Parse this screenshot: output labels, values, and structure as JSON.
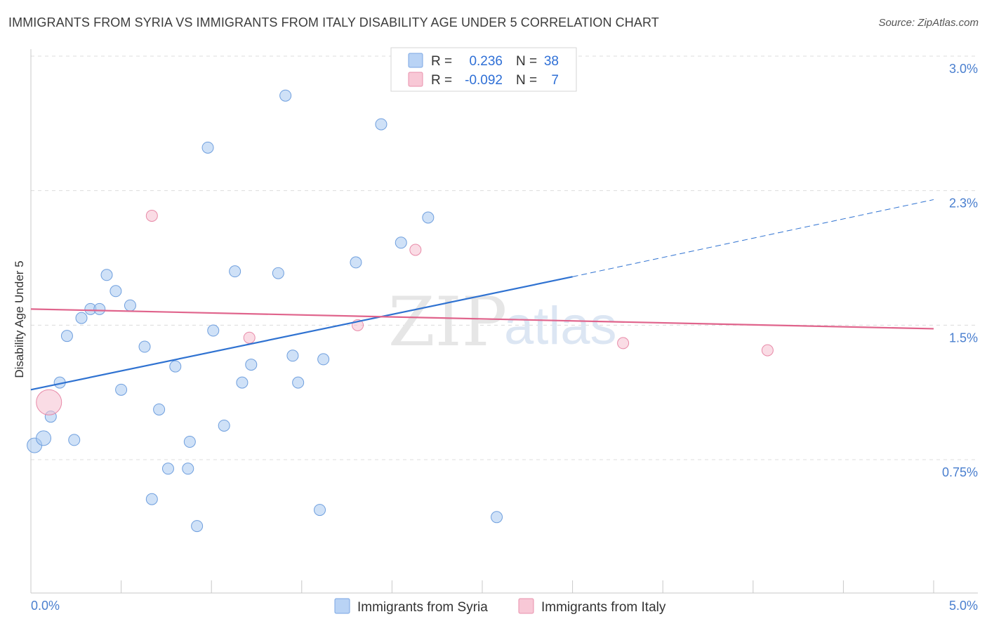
{
  "header": {
    "title": "IMMIGRANTS FROM SYRIA VS IMMIGRANTS FROM ITALY DISABILITY AGE UNDER 5 CORRELATION CHART",
    "source": "Source: ZipAtlas.com"
  },
  "watermark": {
    "zip": "ZIP",
    "atlas": "atlas"
  },
  "chart_data": {
    "type": "scatter",
    "title": "IMMIGRANTS FROM SYRIA VS IMMIGRANTS FROM ITALY DISABILITY AGE UNDER 5 CORRELATION CHART",
    "xlabel": "",
    "ylabel": "Disability Age Under 5",
    "xlim": [
      0.0,
      5.0
    ],
    "ylim": [
      0.0,
      3.0
    ],
    "x_tick_labels": [
      "0.0%",
      "5.0%"
    ],
    "y_ticks": [
      {
        "value": 3.0,
        "label": "3.0%"
      },
      {
        "value": 2.25,
        "label": "2.3%"
      },
      {
        "value": 1.5,
        "label": "1.5%"
      },
      {
        "value": 0.75,
        "label": "0.75%"
      }
    ],
    "legend_stats": [
      {
        "r_label": "R =",
        "r_value": "0.236",
        "n_label": "N =",
        "n_value": "38"
      },
      {
        "r_label": "R =",
        "r_value": "-0.092",
        "n_label": "N =",
        "n_value": "7"
      }
    ],
    "series": [
      {
        "name": "Immigrants from Syria",
        "color": "#a8c8f0",
        "stroke": "#6f9fde",
        "trend_color": "#2f72d1",
        "trend": {
          "x0": 0.0,
          "y0": 1.14,
          "x1": 3.0,
          "y1": 1.77,
          "dash_to": 5.0,
          "dash_y": 2.2
        },
        "points": [
          {
            "x": 0.02,
            "y": 0.83,
            "big": true
          },
          {
            "x": 0.07,
            "y": 0.87,
            "big": true
          },
          {
            "x": 0.11,
            "y": 0.99
          },
          {
            "x": 0.16,
            "y": 1.18
          },
          {
            "x": 0.2,
            "y": 1.44
          },
          {
            "x": 0.24,
            "y": 0.86
          },
          {
            "x": 0.28,
            "y": 1.54
          },
          {
            "x": 0.33,
            "y": 1.59
          },
          {
            "x": 0.38,
            "y": 1.59
          },
          {
            "x": 0.42,
            "y": 1.78
          },
          {
            "x": 0.47,
            "y": 1.69
          },
          {
            "x": 0.5,
            "y": 1.14
          },
          {
            "x": 0.55,
            "y": 1.61
          },
          {
            "x": 0.63,
            "y": 1.38
          },
          {
            "x": 0.67,
            "y": 0.53
          },
          {
            "x": 0.71,
            "y": 1.03
          },
          {
            "x": 0.76,
            "y": 0.7
          },
          {
            "x": 0.8,
            "y": 1.27
          },
          {
            "x": 0.87,
            "y": 0.7
          },
          {
            "x": 0.88,
            "y": 0.85
          },
          {
            "x": 0.92,
            "y": 0.38
          },
          {
            "x": 0.98,
            "y": 2.49
          },
          {
            "x": 1.01,
            "y": 1.47
          },
          {
            "x": 1.07,
            "y": 0.94
          },
          {
            "x": 1.13,
            "y": 1.8
          },
          {
            "x": 1.17,
            "y": 1.18
          },
          {
            "x": 1.22,
            "y": 1.28
          },
          {
            "x": 1.37,
            "y": 1.79
          },
          {
            "x": 1.41,
            "y": 2.78
          },
          {
            "x": 1.45,
            "y": 1.33
          },
          {
            "x": 1.48,
            "y": 1.18
          },
          {
            "x": 1.6,
            "y": 0.47
          },
          {
            "x": 1.62,
            "y": 1.31
          },
          {
            "x": 1.8,
            "y": 1.85
          },
          {
            "x": 1.94,
            "y": 2.62
          },
          {
            "x": 2.05,
            "y": 1.96
          },
          {
            "x": 2.2,
            "y": 2.1
          },
          {
            "x": 2.58,
            "y": 0.43
          }
        ]
      },
      {
        "name": "Immigrants from Italy",
        "color": "#f5bfd0",
        "stroke": "#e88aa8",
        "trend_color": "#e0648c",
        "trend": {
          "x0": 0.0,
          "y0": 1.59,
          "x1": 5.0,
          "y1": 1.48
        },
        "points": [
          {
            "x": 0.1,
            "y": 1.07,
            "big": true
          },
          {
            "x": 0.67,
            "y": 2.11
          },
          {
            "x": 1.21,
            "y": 1.43
          },
          {
            "x": 1.81,
            "y": 1.5
          },
          {
            "x": 2.13,
            "y": 1.92
          },
          {
            "x": 3.28,
            "y": 1.4
          },
          {
            "x": 4.08,
            "y": 1.36
          }
        ]
      }
    ]
  }
}
